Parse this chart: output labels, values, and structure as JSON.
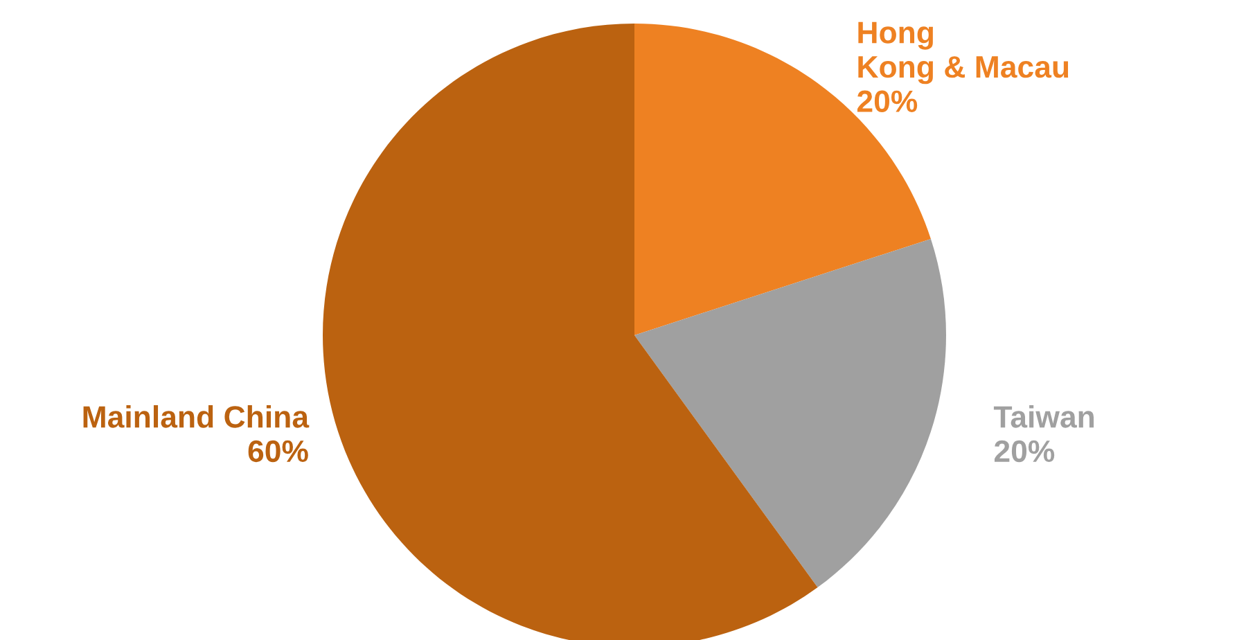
{
  "chart_data": {
    "type": "pie",
    "categories": [
      "Hong\nKong & Macau",
      "Taiwan",
      "Mainland China"
    ],
    "values": [
      20,
      20,
      60
    ],
    "colors": [
      "#ee8122",
      "#a0a0a0",
      "#bb6210"
    ],
    "value_labels": [
      "20%",
      "20%",
      "60%"
    ]
  }
}
